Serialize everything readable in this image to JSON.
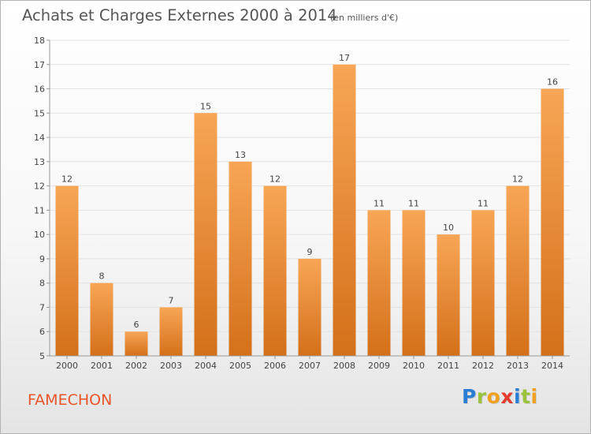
{
  "title": "Achats et Charges Externes 2000 à 2014",
  "subtitle": "(en milliers d'€)",
  "commune": "FAMECHON",
  "logo": {
    "text": "Proxiti",
    "letters": [
      {
        "ch": "P",
        "color": "#2a7fd4"
      },
      {
        "ch": "r",
        "color": "#9ac23c"
      },
      {
        "ch": "o",
        "color": "#f0a01e"
      },
      {
        "ch": "x",
        "color": "#e63b2e"
      },
      {
        "ch": "i",
        "color": "#2a7fd4"
      },
      {
        "ch": "t",
        "color": "#9ac23c"
      },
      {
        "ch": "i",
        "color": "#f0a01e"
      }
    ]
  },
  "colors": {
    "bar_top": "#f7a656",
    "bar_bottom": "#d4701a",
    "axis": "#999999",
    "grid": "#e2e2e2",
    "text": "#444444"
  },
  "chart_data": {
    "type": "bar",
    "title": "Achats et Charges Externes 2000 à 2014",
    "subtitle": "(en milliers d'€)",
    "categories": [
      "2000",
      "2001",
      "2002",
      "2003",
      "2004",
      "2005",
      "2006",
      "2007",
      "2008",
      "2009",
      "2010",
      "2011",
      "2012",
      "2013",
      "2014"
    ],
    "values": [
      12,
      8,
      6,
      7,
      15,
      13,
      12,
      9,
      17,
      11,
      11,
      10,
      11,
      12,
      16
    ],
    "ylim": [
      5,
      18
    ],
    "yticks": [
      5,
      6,
      7,
      8,
      9,
      10,
      11,
      12,
      13,
      14,
      15,
      16,
      17,
      18
    ],
    "grid": true,
    "data_labels": true
  }
}
